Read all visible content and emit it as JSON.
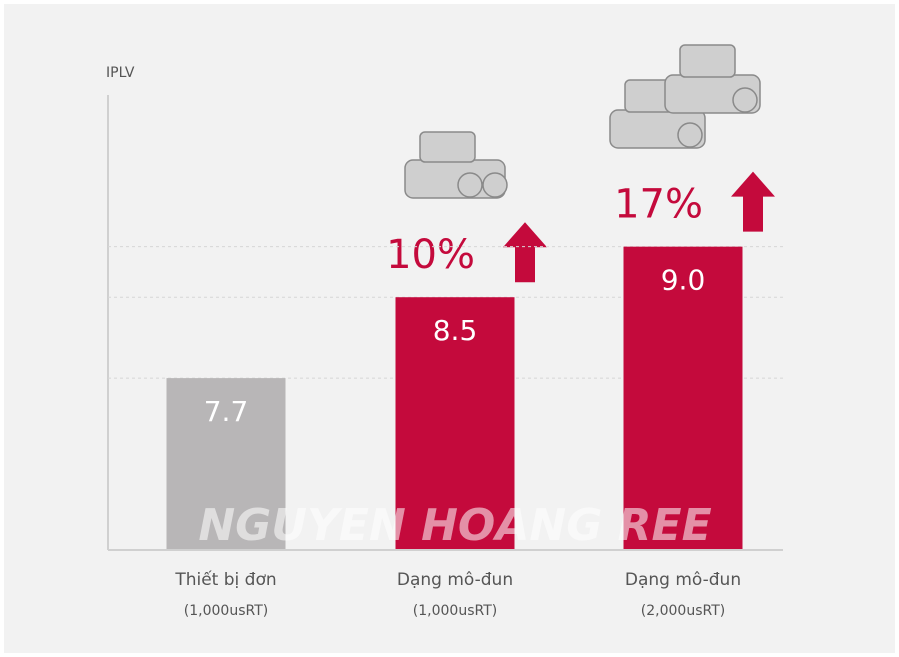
{
  "chart_data": {
    "type": "bar",
    "y_label": "IPLV",
    "categories": [
      "Thiết bị đơn",
      "Dạng mô-đun",
      "Dạng mô-đun"
    ],
    "category_notes": [
      "(1,000usRT)",
      "(1,000usRT)",
      "(2,000usRT)"
    ],
    "values": [
      7.7,
      8.5,
      9.0
    ],
    "value_labels": [
      "7.7",
      "8.5",
      "9.0"
    ],
    "colors": [
      "#b8b6b7",
      "#c40a3c",
      "#c40a3c"
    ],
    "ylim": [
      6,
      10.5
    ],
    "annotations": [
      null,
      "10%",
      "17%"
    ],
    "watermark": "NGUYEN HOANG REE"
  }
}
